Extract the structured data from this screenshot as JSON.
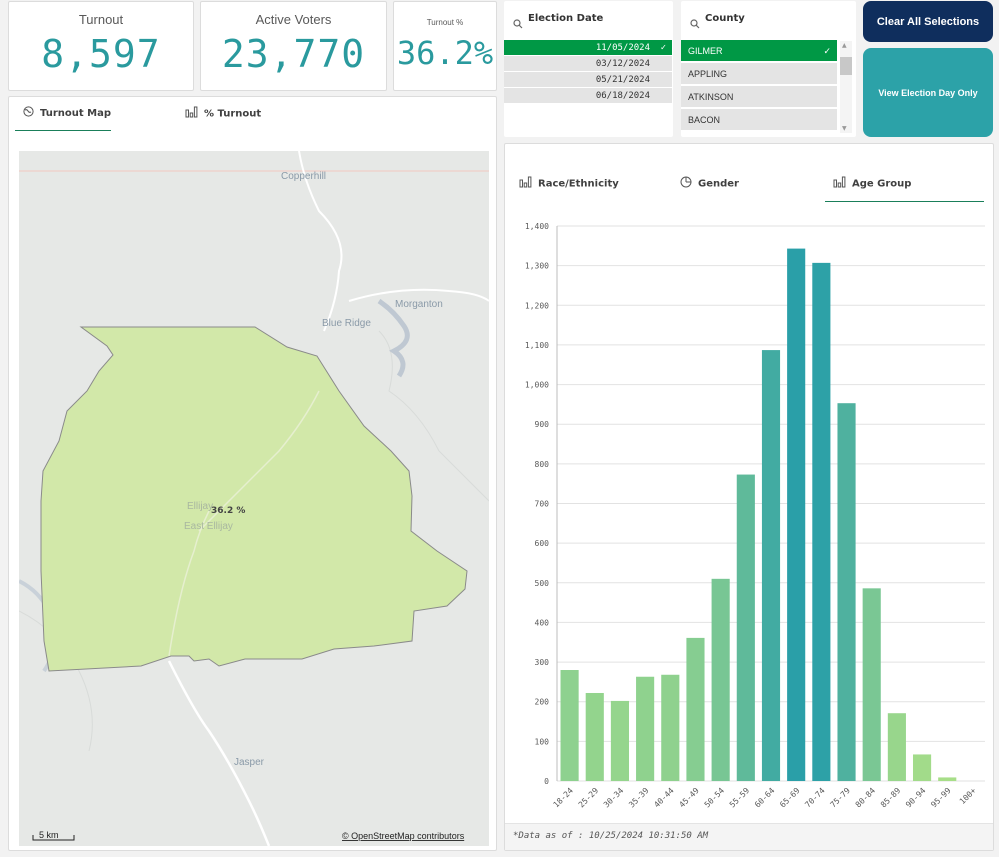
{
  "kpis": {
    "turnout": {
      "label": "Turnout",
      "value": "8,597"
    },
    "active": {
      "label": "Active Voters",
      "value": "23,770"
    },
    "pct": {
      "label": "Turnout %",
      "value": "36.2%"
    }
  },
  "map_panel": {
    "tabs": [
      {
        "label": "Turnout Map"
      },
      {
        "label": "% Turnout"
      }
    ],
    "region_label": "36.2 %",
    "places": [
      "Copperhill",
      "Morganton",
      "Blue Ridge",
      "Ellijay",
      "East Ellijay",
      "Jasper"
    ],
    "scale_label": "5 km",
    "attribution": "© OpenStreetMap contributors",
    "fill_color": "#d2e8a9"
  },
  "filters": {
    "election_date": {
      "title": "Election Date",
      "items": [
        "11/05/2024",
        "03/12/2024",
        "05/21/2024",
        "06/18/2024"
      ],
      "selected": "11/05/2024"
    },
    "county": {
      "title": "County",
      "items": [
        "GILMER",
        "APPLING",
        "ATKINSON",
        "BACON"
      ],
      "selected": "GILMER"
    }
  },
  "buttons": {
    "clear": "Clear All Selections",
    "election_day": "View Election Day Only"
  },
  "chart_panel": {
    "tabs": [
      {
        "label": "Race/Ethnicity"
      },
      {
        "label": "Gender"
      },
      {
        "label": "Age Group"
      }
    ],
    "footnote": "*Data as of : 10/25/2024 10:31:50 AM"
  },
  "chart_data": {
    "type": "bar",
    "title": "Age Group",
    "xlabel": "",
    "ylabel": "",
    "categories": [
      "18-24",
      "25-29",
      "30-34",
      "35-39",
      "40-44",
      "45-49",
      "50-54",
      "55-59",
      "60-64",
      "65-69",
      "70-74",
      "75-79",
      "80-84",
      "85-89",
      "90-94",
      "95-99",
      "100+"
    ],
    "values": [
      280,
      222,
      202,
      263,
      268,
      361,
      510,
      773,
      1087,
      1343,
      1307,
      953,
      486,
      171,
      67,
      9,
      0
    ],
    "ylim": [
      0,
      1400
    ],
    "yticks": [
      0,
      100,
      200,
      300,
      400,
      500,
      600,
      700,
      800,
      900,
      1000,
      1100,
      1200,
      1300,
      1400
    ],
    "ytick_labels": [
      "0",
      "100",
      "200",
      "300",
      "400",
      "500",
      "600",
      "700",
      "800",
      "900",
      "1,000",
      "1,100",
      "1,200",
      "1,300",
      "1,400"
    ],
    "color_low": "#a8de88",
    "color_high": "#2a9fa8",
    "grid": true
  }
}
